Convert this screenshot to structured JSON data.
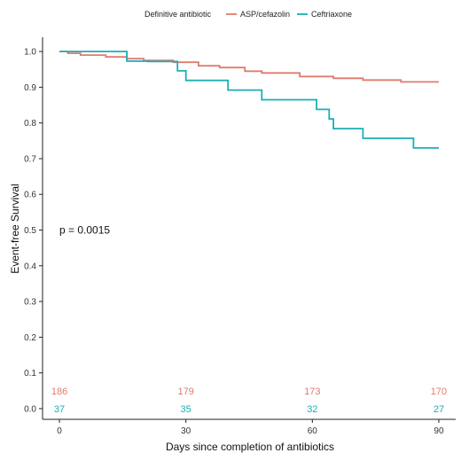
{
  "chart_data": {
    "type": "line",
    "subtype": "kaplan-meier step",
    "title": "",
    "xlabel": "Days since completion of antibiotics",
    "ylabel": "Event-free Survival",
    "xlim": [
      -4,
      94
    ],
    "ylim": [
      -0.03,
      1.04
    ],
    "xticks": [
      0,
      30,
      60,
      90
    ],
    "yticks": [
      0.0,
      0.1,
      0.2,
      0.3,
      0.4,
      0.5,
      0.6,
      0.7,
      0.8,
      0.9,
      1.0
    ],
    "ytick_labels": [
      "0.0",
      "0.1",
      "0.2",
      "0.3",
      "0.4",
      "0.5",
      "0.6",
      "0.7",
      "0.8",
      "0.9",
      "1.0"
    ],
    "grid": false,
    "legend": {
      "title": "Definitive antibiotic",
      "placement": "top"
    },
    "annotation": {
      "text": "p = 0.0015",
      "x": 0,
      "y": 0.5
    },
    "series": [
      {
        "name": "ASP/cefazolin",
        "color": "#E07B6E",
        "x": [
          0,
          2,
          5,
          11,
          16,
          20,
          27,
          33,
          38,
          44,
          48,
          57,
          65,
          72,
          81,
          90
        ],
        "y": [
          1.0,
          0.995,
          0.99,
          0.985,
          0.98,
          0.975,
          0.97,
          0.96,
          0.955,
          0.945,
          0.94,
          0.93,
          0.925,
          0.92,
          0.915,
          0.915
        ]
      },
      {
        "name": "Ceftriaxone",
        "color": "#1AAFB5",
        "x": [
          0,
          16,
          21,
          28,
          30,
          40,
          48,
          61,
          64,
          65,
          72,
          84,
          90
        ],
        "y": [
          1.0,
          0.973,
          0.972,
          0.946,
          0.919,
          0.892,
          0.865,
          0.838,
          0.811,
          0.784,
          0.757,
          0.73,
          0.73
        ]
      }
    ],
    "risk_table": {
      "x": [
        0,
        30,
        60,
        90
      ],
      "rows": [
        {
          "name": "ASP/cefazolin",
          "color": "#E07B6E",
          "y": 0.05,
          "values": [
            "186",
            "179",
            "173",
            "170"
          ]
        },
        {
          "name": "Ceftriaxone",
          "color": "#1AAFB5",
          "y": 0.0,
          "values": [
            "37",
            "35",
            "32",
            "27"
          ]
        }
      ]
    }
  }
}
